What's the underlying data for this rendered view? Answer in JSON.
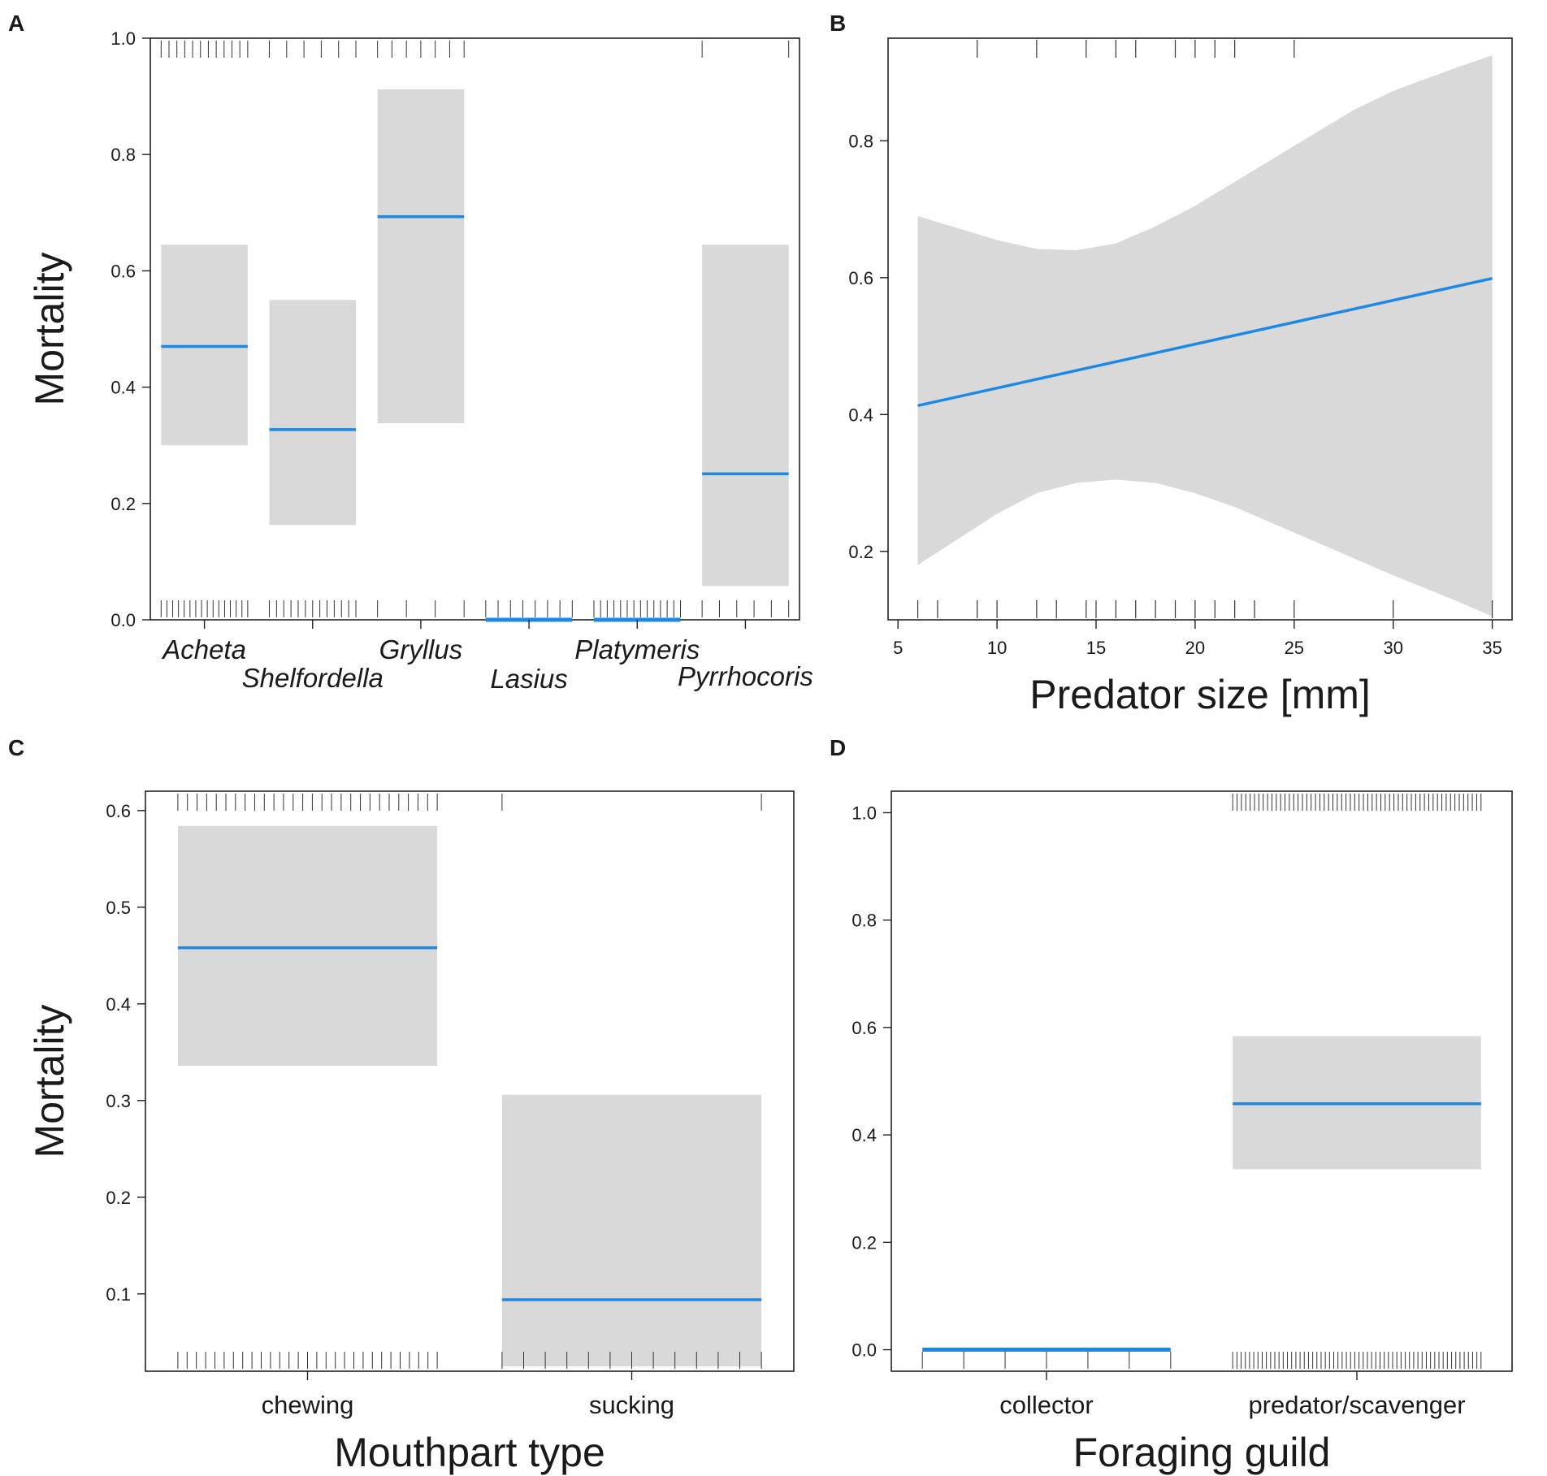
{
  "figure": {
    "colors": {
      "line": "#1e88e5",
      "band": "#d9d9d9",
      "axis": "#222222",
      "rug": "#333333"
    }
  },
  "chart_data": [
    {
      "panel": "A",
      "type": "effect-categorical",
      "ylabel": "Mortality",
      "xlabel": "",
      "ylim": [
        0,
        1.0
      ],
      "yticks": [
        0.0,
        0.2,
        0.4,
        0.6,
        0.8,
        1.0
      ],
      "ytick_labels": [
        "0.0",
        "0.2",
        "0.4",
        "0.6",
        "0.8",
        "1.0"
      ],
      "categories": [
        "Acheta",
        "Shelfordella",
        "Gryllus",
        "Lasius",
        "Platymeris",
        "Pyrrhocoris"
      ],
      "values": [
        0.47,
        0.327,
        0.693,
        0.0,
        0.0,
        0.251
      ],
      "ci_lower": [
        0.3,
        0.163,
        0.338,
        0.0,
        0.0,
        0.058
      ],
      "ci_upper": [
        0.645,
        0.55,
        0.912,
        0.0,
        0.0,
        0.645
      ],
      "italic_labels": true
    },
    {
      "panel": "B",
      "type": "effect-line",
      "ylabel": "",
      "xlabel": "Predator size [mm]",
      "xlim": [
        5,
        35
      ],
      "ylim": [
        0.1,
        0.95
      ],
      "xticks": [
        5,
        10,
        15,
        20,
        25,
        30,
        35
      ],
      "xtick_labels": [
        "5",
        "10",
        "15",
        "20",
        "25",
        "30",
        "35"
      ],
      "yticks": [
        0.2,
        0.4,
        0.6,
        0.8
      ],
      "ytick_labels": [
        "0.2",
        "0.4",
        "0.6",
        "0.8"
      ],
      "x": [
        6,
        35
      ],
      "y": [
        0.413,
        0.599
      ],
      "ci_x": [
        6,
        10,
        12,
        14,
        16,
        18,
        20,
        22,
        24,
        26,
        28,
        30,
        33,
        35
      ],
      "ci_lower": [
        0.18,
        0.255,
        0.285,
        0.3,
        0.305,
        0.3,
        0.285,
        0.265,
        0.24,
        0.215,
        0.19,
        0.165,
        0.13,
        0.105
      ],
      "ci_upper": [
        0.69,
        0.655,
        0.642,
        0.64,
        0.65,
        0.675,
        0.705,
        0.74,
        0.775,
        0.81,
        0.845,
        0.873,
        0.905,
        0.925
      ],
      "rug_top": [
        9,
        12,
        14.5,
        16,
        17,
        19,
        20,
        21,
        22,
        25
      ],
      "rug_bottom": [
        6,
        7,
        9,
        10,
        12,
        13,
        14.5,
        15,
        16,
        17,
        18,
        19,
        20,
        21,
        22,
        23,
        25,
        30,
        35
      ]
    },
    {
      "panel": "C",
      "type": "effect-categorical",
      "ylabel": "Mortality",
      "xlabel": "Mouthpart type",
      "ylim": [
        0.02,
        0.62
      ],
      "yticks": [
        0.1,
        0.2,
        0.3,
        0.4,
        0.5,
        0.6
      ],
      "ytick_labels": [
        "0.1",
        "0.2",
        "0.3",
        "0.4",
        "0.5",
        "0.6"
      ],
      "categories": [
        "chewing",
        "sucking"
      ],
      "values": [
        0.458,
        0.094
      ],
      "ci_lower": [
        0.336,
        0.025
      ],
      "ci_upper": [
        0.584,
        0.306
      ]
    },
    {
      "panel": "D",
      "type": "effect-categorical",
      "ylabel": "",
      "xlabel": "Foraging guild",
      "ylim": [
        -0.04,
        1.04
      ],
      "yticks": [
        0.0,
        0.2,
        0.4,
        0.6,
        0.8,
        1.0
      ],
      "ytick_labels": [
        "0.0",
        "0.2",
        "0.4",
        "0.6",
        "0.8",
        "1.0"
      ],
      "categories": [
        "collector",
        "predator/scavenger"
      ],
      "values": [
        0.0,
        0.458
      ],
      "ci_lower": [
        0.0,
        0.336
      ],
      "ci_upper": [
        0.0,
        0.584
      ]
    }
  ]
}
